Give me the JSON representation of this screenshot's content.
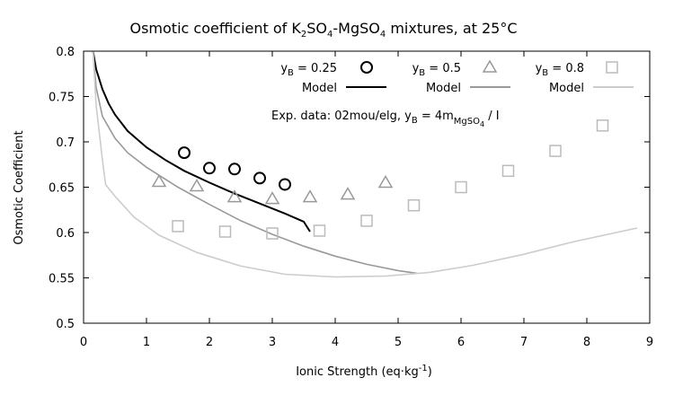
{
  "chart_data": {
    "type": "scatter",
    "title": {
      "pre": "Osmotic coefficient of K",
      "sub1": "2",
      "mid1": "SO",
      "sub2": "4",
      "mid2": "-MgSO",
      "sub3": "4",
      "post": " mixtures, at 25°C"
    },
    "xlabel": {
      "pre": "Ionic Strength (eq·kg",
      "sup": "-1",
      "post": ")"
    },
    "ylabel": "Osmotic Coefficient",
    "xlim": [
      0,
      9
    ],
    "ylim": [
      0.5,
      0.8
    ],
    "xticks": [
      "0",
      "1",
      "2",
      "3",
      "4",
      "5",
      "6",
      "7",
      "8",
      "9"
    ],
    "yticks": [
      "0.5",
      "0.55",
      "0.6",
      "0.65",
      "0.7",
      "0.75",
      "0.8"
    ],
    "grid": false,
    "legend_placement": "top-right",
    "annotation": {
      "pre": "Exp. data: 02mou/elg, y",
      "sub1": "B",
      "mid": " = 4m",
      "sub2": "MgSO",
      "sub3": "4",
      "post": " / I"
    },
    "series": [
      {
        "name": {
          "pre": "y",
          "sub": "B",
          "post": " = 0.25"
        },
        "marker": "circle",
        "color": "#000000",
        "x": [
          1.6,
          2.0,
          2.4,
          2.8,
          3.2
        ],
        "y": [
          0.688,
          0.671,
          0.67,
          0.66,
          0.653
        ]
      },
      {
        "name": {
          "pre": "y",
          "sub": "B",
          "post": " = 0.5"
        },
        "marker": "triangle",
        "color": "#999999",
        "x": [
          1.2,
          1.8,
          2.4,
          3.0,
          3.6,
          4.2,
          4.8
        ],
        "y": [
          0.656,
          0.651,
          0.639,
          0.637,
          0.639,
          0.642,
          0.655
        ]
      },
      {
        "name": {
          "pre": "y",
          "sub": "B",
          "post": " = 0.8"
        },
        "marker": "square",
        "color": "#bbbbbb",
        "x": [
          1.5,
          2.25,
          3.0,
          3.75,
          4.5,
          5.25,
          6.0,
          6.75,
          7.5,
          8.25
        ],
        "y": [
          0.607,
          0.601,
          0.599,
          0.602,
          0.613,
          0.63,
          0.65,
          0.668,
          0.69,
          0.718
        ]
      }
    ],
    "models": [
      {
        "name": "Model",
        "color": "#000000",
        "x": [
          0.15,
          0.2,
          0.3,
          0.4,
          0.5,
          0.7,
          1.0,
          1.3,
          1.6,
          2.0,
          2.4,
          2.8,
          3.2,
          3.5,
          3.6
        ],
        "y": [
          0.8,
          0.78,
          0.758,
          0.742,
          0.73,
          0.712,
          0.694,
          0.68,
          0.668,
          0.655,
          0.643,
          0.632,
          0.621,
          0.612,
          0.601
        ]
      },
      {
        "name": "Model",
        "color": "#999999",
        "x": [
          0.15,
          0.2,
          0.3,
          0.5,
          0.7,
          1.0,
          1.5,
          2.0,
          2.5,
          3.0,
          3.5,
          4.0,
          4.5,
          5.0,
          5.3
        ],
        "y": [
          0.8,
          0.76,
          0.728,
          0.704,
          0.688,
          0.672,
          0.65,
          0.631,
          0.613,
          0.598,
          0.585,
          0.574,
          0.565,
          0.558,
          0.555
        ]
      },
      {
        "name": "Model",
        "color": "#cccccc",
        "x": [
          0.15,
          0.2,
          0.3,
          0.35,
          0.5,
          0.8,
          1.2,
          1.8,
          2.5,
          3.2,
          4.0,
          4.8,
          5.5,
          6.2,
          7.0,
          7.8,
          8.8
        ],
        "y": [
          0.8,
          0.74,
          0.68,
          0.653,
          0.64,
          0.617,
          0.597,
          0.578,
          0.563,
          0.554,
          0.551,
          0.552,
          0.556,
          0.564,
          0.576,
          0.59,
          0.605
        ]
      }
    ]
  }
}
